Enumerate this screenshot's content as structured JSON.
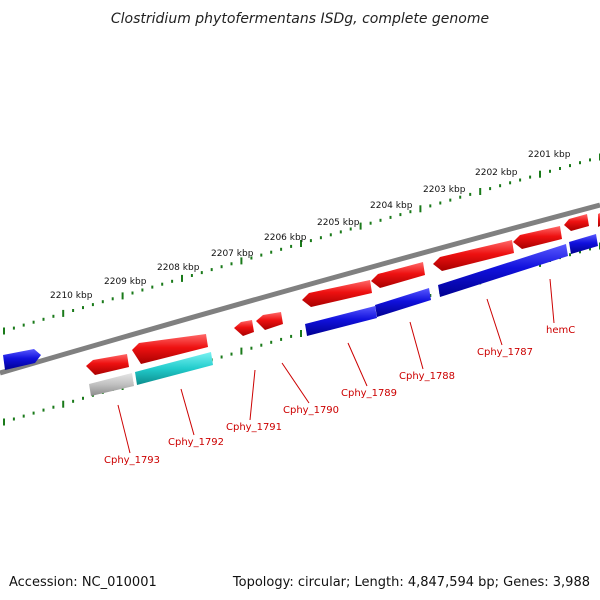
{
  "title": "Clostridium phytofermentans ISDg, complete genome",
  "footer": {
    "accession": "Accession: NC_010001",
    "topology": "Topology: circular; Length: 4,847,594 bp; Genes: 3,988"
  },
  "colors": {
    "backbone": "#808080",
    "ticks": "#1a7a1a",
    "label_text": "#cc0000",
    "gene_red": "#ee1111",
    "gene_blue": "#1111dd",
    "gene_gray": "#c0c0c0",
    "gene_cyan": "#22cccc"
  },
  "scale": {
    "unit": "kbp",
    "labels": [
      "2201 kbp",
      "2202 kbp",
      "2203 kbp",
      "2204 kbp",
      "2205 kbp",
      "2206 kbp",
      "2207 kbp",
      "2208 kbp",
      "2209 kbp",
      "2210 kbp"
    ]
  },
  "gene_labels": [
    "hemC",
    "Cphy_1787",
    "Cphy_1788",
    "Cphy_1789",
    "Cphy_1790",
    "Cphy_1791",
    "Cphy_1792",
    "Cphy_1793"
  ]
}
